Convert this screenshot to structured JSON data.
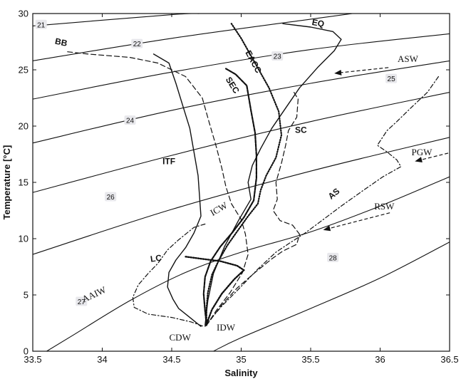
{
  "chart_data": {
    "type": "line",
    "xlabel": "Salinity",
    "ylabel": "Temperature [°C]",
    "xlim": [
      33.5,
      36.5
    ],
    "ylim": [
      0,
      30
    ],
    "xticks": [
      "33.5",
      "34",
      "34.5",
      "35",
      "35.5",
      "36",
      "36.5"
    ],
    "yticks": [
      "0",
      "5",
      "10",
      "15",
      "20",
      "25",
      "30"
    ],
    "grid": false,
    "density_contours": [
      {
        "label": "21",
        "points": [
          [
            33.5,
            28.9
          ],
          [
            34.5,
            29.9
          ],
          [
            34.7,
            30.0
          ]
        ]
      },
      {
        "label": "22",
        "points": [
          [
            33.5,
            25.8
          ],
          [
            34.5,
            27.8
          ],
          [
            35.5,
            29.5
          ],
          [
            35.8,
            30.0
          ]
        ]
      },
      {
        "label": "23",
        "points": [
          [
            33.5,
            22.4
          ],
          [
            34.5,
            24.8
          ],
          [
            35.5,
            26.8
          ],
          [
            36.5,
            28.2
          ]
        ]
      },
      {
        "label": "24",
        "points": [
          [
            33.5,
            18.5
          ],
          [
            34.5,
            21.4
          ],
          [
            35.5,
            23.8
          ],
          [
            36.5,
            25.8
          ]
        ]
      },
      {
        "label": "25",
        "points": [
          [
            33.5,
            14.1
          ],
          [
            34.5,
            17.4
          ],
          [
            35.5,
            20.4
          ],
          [
            36.5,
            23.0
          ]
        ]
      },
      {
        "label": "26",
        "points": [
          [
            33.5,
            8.6
          ],
          [
            34.5,
            12.6
          ],
          [
            35.5,
            16.0
          ],
          [
            36.5,
            19.0
          ]
        ]
      },
      {
        "label": "27",
        "points": [
          [
            33.6,
            0.0
          ],
          [
            33.8,
            1.5
          ],
          [
            34.2,
            4.5
          ],
          [
            34.6,
            7.0
          ],
          [
            35.0,
            8.8
          ],
          [
            35.5,
            10.6
          ],
          [
            36.0,
            12.9
          ],
          [
            36.5,
            15.5
          ]
        ]
      },
      {
        "label": "28",
        "points": [
          [
            34.8,
            0.0
          ],
          [
            35.0,
            1.2
          ],
          [
            35.5,
            3.8
          ],
          [
            36.0,
            6.5
          ],
          [
            36.5,
            9.7
          ]
        ]
      }
    ],
    "contour_label_positions": [
      {
        "label": "21",
        "x": 33.56,
        "y": 29.0
      },
      {
        "label": "22",
        "x": 34.25,
        "y": 27.3
      },
      {
        "label": "23",
        "x": 35.26,
        "y": 26.2
      },
      {
        "label": "24",
        "x": 34.2,
        "y": 20.5
      },
      {
        "label": "25",
        "x": 36.08,
        "y": 24.2
      },
      {
        "label": "26",
        "x": 34.06,
        "y": 13.7
      },
      {
        "label": "27",
        "x": 33.85,
        "y": 4.4
      },
      {
        "label": "28",
        "x": 35.66,
        "y": 8.3
      }
    ],
    "series": [
      {
        "name": "EQ",
        "style": "solid",
        "points": [
          [
            35.3,
            29.1
          ],
          [
            35.5,
            28.8
          ],
          [
            35.66,
            28.4
          ],
          [
            35.72,
            27.7
          ],
          [
            35.67,
            26.7
          ],
          [
            35.55,
            25.2
          ],
          [
            35.42,
            23.4
          ],
          [
            35.32,
            21.6
          ],
          [
            35.22,
            19.8
          ],
          [
            35.14,
            18.0
          ],
          [
            35.08,
            16.5
          ],
          [
            35.05,
            15.0
          ],
          [
            35.07,
            13.5
          ],
          [
            34.98,
            11.6
          ],
          [
            34.88,
            9.3
          ],
          [
            34.8,
            6.9
          ],
          [
            34.76,
            4.5
          ],
          [
            34.74,
            2.3
          ]
        ]
      },
      {
        "name": "ITF",
        "style": "solid",
        "points": [
          [
            34.37,
            26.4
          ],
          [
            34.48,
            25.6
          ],
          [
            34.53,
            23.8
          ],
          [
            34.58,
            21.8
          ],
          [
            34.63,
            19.8
          ],
          [
            34.66,
            17.7
          ],
          [
            34.69,
            15.6
          ],
          [
            34.7,
            13.8
          ],
          [
            34.71,
            12.0
          ],
          [
            34.66,
            10.5
          ],
          [
            34.6,
            9.2
          ],
          [
            34.53,
            8.1
          ],
          [
            34.48,
            7.0
          ],
          [
            34.47,
            5.7
          ],
          [
            34.51,
            4.6
          ],
          [
            34.55,
            3.8
          ],
          [
            34.63,
            3.0
          ],
          [
            34.71,
            2.2
          ]
        ]
      },
      {
        "name": "BB",
        "style": "dashed",
        "points": [
          [
            33.75,
            26.6
          ],
          [
            33.9,
            26.4
          ],
          [
            34.2,
            26.1
          ],
          [
            34.4,
            25.6
          ],
          [
            34.6,
            24.4
          ],
          [
            34.72,
            22.5
          ],
          [
            34.77,
            20.3
          ],
          [
            34.82,
            18.2
          ],
          [
            34.86,
            16.3
          ],
          [
            34.89,
            14.6
          ],
          [
            34.93,
            13.1
          ],
          [
            35.0,
            11.7
          ],
          [
            35.03,
            10.4
          ],
          [
            35.05,
            8.6
          ],
          [
            35.01,
            7.0
          ],
          [
            34.92,
            5.2
          ],
          [
            34.82,
            3.6
          ],
          [
            34.75,
            2.3
          ]
        ]
      },
      {
        "name": "SEC",
        "style": "bold-dashed",
        "points": [
          [
            34.89,
            25.1
          ],
          [
            34.96,
            24.6
          ],
          [
            35.04,
            23.6
          ],
          [
            35.07,
            21.4
          ],
          [
            35.1,
            19.4
          ],
          [
            35.11,
            17.4
          ],
          [
            35.11,
            15.4
          ],
          [
            35.09,
            13.4
          ],
          [
            35.02,
            11.9
          ],
          [
            34.94,
            10.6
          ],
          [
            34.85,
            9.3
          ],
          [
            34.78,
            8.0
          ],
          [
            34.74,
            6.6
          ],
          [
            34.73,
            5.1
          ],
          [
            34.74,
            3.6
          ],
          [
            34.75,
            2.4
          ]
        ]
      },
      {
        "name": "EACC",
        "style": "dotted",
        "points": [
          [
            34.93,
            29.1
          ],
          [
            35.0,
            27.8
          ],
          [
            35.1,
            25.6
          ],
          [
            35.2,
            23.4
          ],
          [
            35.27,
            21.3
          ],
          [
            35.29,
            19.2
          ],
          [
            35.25,
            17.2
          ],
          [
            35.18,
            15.6
          ],
          [
            35.14,
            14.3
          ],
          [
            35.12,
            13.1
          ],
          [
            35.05,
            12.0
          ],
          [
            34.98,
            10.8
          ],
          [
            34.9,
            9.4
          ],
          [
            34.84,
            8.1
          ],
          [
            34.79,
            6.8
          ],
          [
            34.76,
            5.2
          ],
          [
            34.75,
            3.8
          ],
          [
            34.75,
            2.3
          ]
        ]
      },
      {
        "name": "SC",
        "style": "dashed",
        "points": [
          [
            35.38,
            23.0
          ],
          [
            35.41,
            22.4
          ],
          [
            35.4,
            20.8
          ],
          [
            35.34,
            19.6
          ],
          [
            35.32,
            18.3
          ],
          [
            35.29,
            16.7
          ],
          [
            35.25,
            15.0
          ],
          [
            35.26,
            13.5
          ],
          [
            35.23,
            12.5
          ],
          [
            35.28,
            11.6
          ],
          [
            35.37,
            11.2
          ],
          [
            35.42,
            10.4
          ],
          [
            35.4,
            9.5
          ],
          [
            35.3,
            8.9
          ],
          [
            35.22,
            8.2
          ],
          [
            35.1,
            7.0
          ],
          [
            34.97,
            5.6
          ],
          [
            34.86,
            4.1
          ],
          [
            34.78,
            2.8
          ],
          [
            34.75,
            2.3
          ]
        ]
      },
      {
        "name": "AS",
        "style": "dash-dot",
        "points": [
          [
            36.42,
            24.4
          ],
          [
            36.34,
            23.0
          ],
          [
            36.22,
            21.6
          ],
          [
            36.12,
            20.4
          ],
          [
            36.05,
            19.6
          ],
          [
            35.98,
            18.3
          ],
          [
            36.05,
            17.7
          ],
          [
            36.12,
            17.0
          ],
          [
            36.15,
            16.4
          ],
          [
            36.02,
            15.5
          ],
          [
            35.88,
            14.3
          ],
          [
            35.72,
            12.9
          ],
          [
            35.58,
            11.6
          ],
          [
            35.46,
            10.5
          ],
          [
            35.36,
            9.7
          ],
          [
            35.25,
            8.8
          ],
          [
            35.12,
            7.3
          ],
          [
            34.98,
            5.5
          ],
          [
            34.86,
            4.0
          ],
          [
            34.77,
            2.7
          ],
          [
            34.74,
            2.2
          ]
        ]
      },
      {
        "name": "LC",
        "style": "dash-dot",
        "points": [
          [
            34.74,
            11.3
          ],
          [
            34.66,
            11.0
          ],
          [
            34.55,
            9.9
          ],
          [
            34.47,
            9.0
          ],
          [
            34.4,
            7.8
          ],
          [
            34.33,
            6.9
          ],
          [
            34.26,
            5.9
          ],
          [
            34.22,
            4.8
          ],
          [
            34.23,
            3.9
          ],
          [
            34.33,
            3.3
          ],
          [
            34.5,
            3.0
          ],
          [
            34.64,
            2.6
          ],
          [
            34.73,
            2.2
          ]
        ]
      },
      {
        "name": "",
        "style": "dotted-bold",
        "points": [
          [
            34.6,
            8.4
          ],
          [
            34.72,
            8.2
          ],
          [
            34.85,
            8.0
          ],
          [
            34.97,
            7.6
          ],
          [
            35.02,
            7.2
          ],
          [
            34.95,
            6.4
          ],
          [
            34.86,
            5.1
          ],
          [
            34.79,
            3.7
          ],
          [
            34.75,
            2.4
          ]
        ]
      }
    ],
    "water_mass_labels": [
      {
        "text": "ASW",
        "x": 36.2,
        "y": 25.7,
        "arrow_from": [
          36.06,
          25.2
        ],
        "arrow_to": [
          35.68,
          24.7
        ]
      },
      {
        "text": "PGW",
        "x": 36.3,
        "y": 17.4,
        "arrow_from": [
          36.49,
          17.6
        ],
        "arrow_to": [
          36.26,
          16.9
        ]
      },
      {
        "text": "RSW",
        "x": 36.03,
        "y": 12.6,
        "arrow_from": [
          36.07,
          12.3
        ],
        "arrow_to": [
          35.6,
          10.8
        ]
      },
      {
        "text": "ICW",
        "x": 34.85,
        "y": 12.4
      },
      {
        "text": "AAIW",
        "x": 33.95,
        "y": 4.8
      },
      {
        "text": "IDW",
        "x": 34.89,
        "y": 1.85
      },
      {
        "text": "CDW",
        "x": 34.56,
        "y": 0.95
      }
    ],
    "series_label_positions": [
      {
        "text": "EQ",
        "x": 35.55,
        "y": 28.9
      },
      {
        "text": "BB",
        "x": 33.7,
        "y": 27.2
      },
      {
        "text": "EACC",
        "x": 35.07,
        "y": 25.6
      },
      {
        "text": "SEC",
        "x": 34.92,
        "y": 23.5
      },
      {
        "text": "SC",
        "x": 35.43,
        "y": 19.4
      },
      {
        "text": "ITF",
        "x": 34.48,
        "y": 16.6
      },
      {
        "text": "AS",
        "x": 35.68,
        "y": 13.8
      },
      {
        "text": "LC",
        "x": 34.39,
        "y": 8.0
      }
    ]
  }
}
